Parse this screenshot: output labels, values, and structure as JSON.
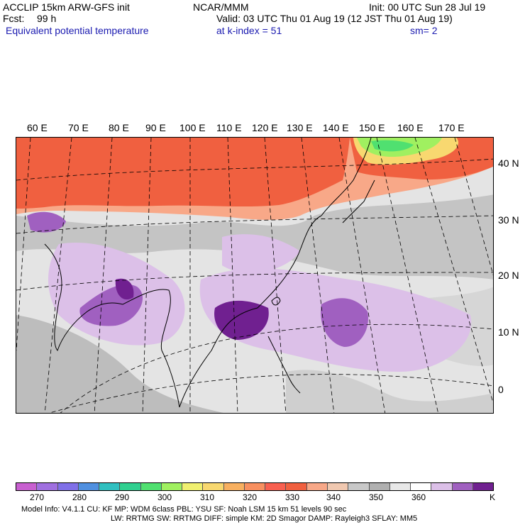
{
  "header": {
    "model": "ACCLIP 15km ARW-GFS init",
    "center": "NCAR/MMM",
    "init": "Init: 00 UTC Sun 28 Jul 19",
    "fcst_label": "Fcst:",
    "fcst_value": "99 h",
    "valid": "Valid: 03 UTC Thu 01 Aug 19 (12 JST Thu 01 Aug 19)",
    "field": "Equivalent potential temperature",
    "level": "at k-index =  51",
    "smoothing": "sm= 2"
  },
  "map": {
    "lon_labels": [
      "60 E",
      "70 E",
      "80 E",
      "90 E",
      "100 E",
      "110 E",
      "120 E",
      "130 E",
      "140 E",
      "150 E",
      "160 E",
      "170 E"
    ],
    "lat_labels": [
      "40 N",
      "30 N",
      "20 N",
      "10 N",
      "0"
    ]
  },
  "colorbar": {
    "colors": [
      "#c860d0",
      "#a070e0",
      "#8070e8",
      "#5090e0",
      "#30c0c0",
      "#30d090",
      "#50e070",
      "#a0f060",
      "#f0f070",
      "#f8d870",
      "#f8b060",
      "#f89060",
      "#f86050",
      "#f06040",
      "#f8a888",
      "#f0c8b0",
      "#c8c8c8",
      "#b0b0b0",
      "#e8e8e8",
      "#ffffff",
      "#dcc0e8",
      "#a060c0",
      "#702090"
    ],
    "ticks": [
      "270",
      "280",
      "290",
      "300",
      "310",
      "320",
      "330",
      "340",
      "350",
      "360"
    ],
    "unit": "K"
  },
  "footer": {
    "line1": "Model Info: V4.1.1     CU: KF        MP: WDM 6class   PBL: YSU       SF: Noah LSM    15 km   51 levels   90 sec",
    "line2": "LW: RRTMG    SW: RRTMG   DIFF: simple KM: 2D Smagor DAMP: Rayleigh3  SFLAY: MM5"
  }
}
